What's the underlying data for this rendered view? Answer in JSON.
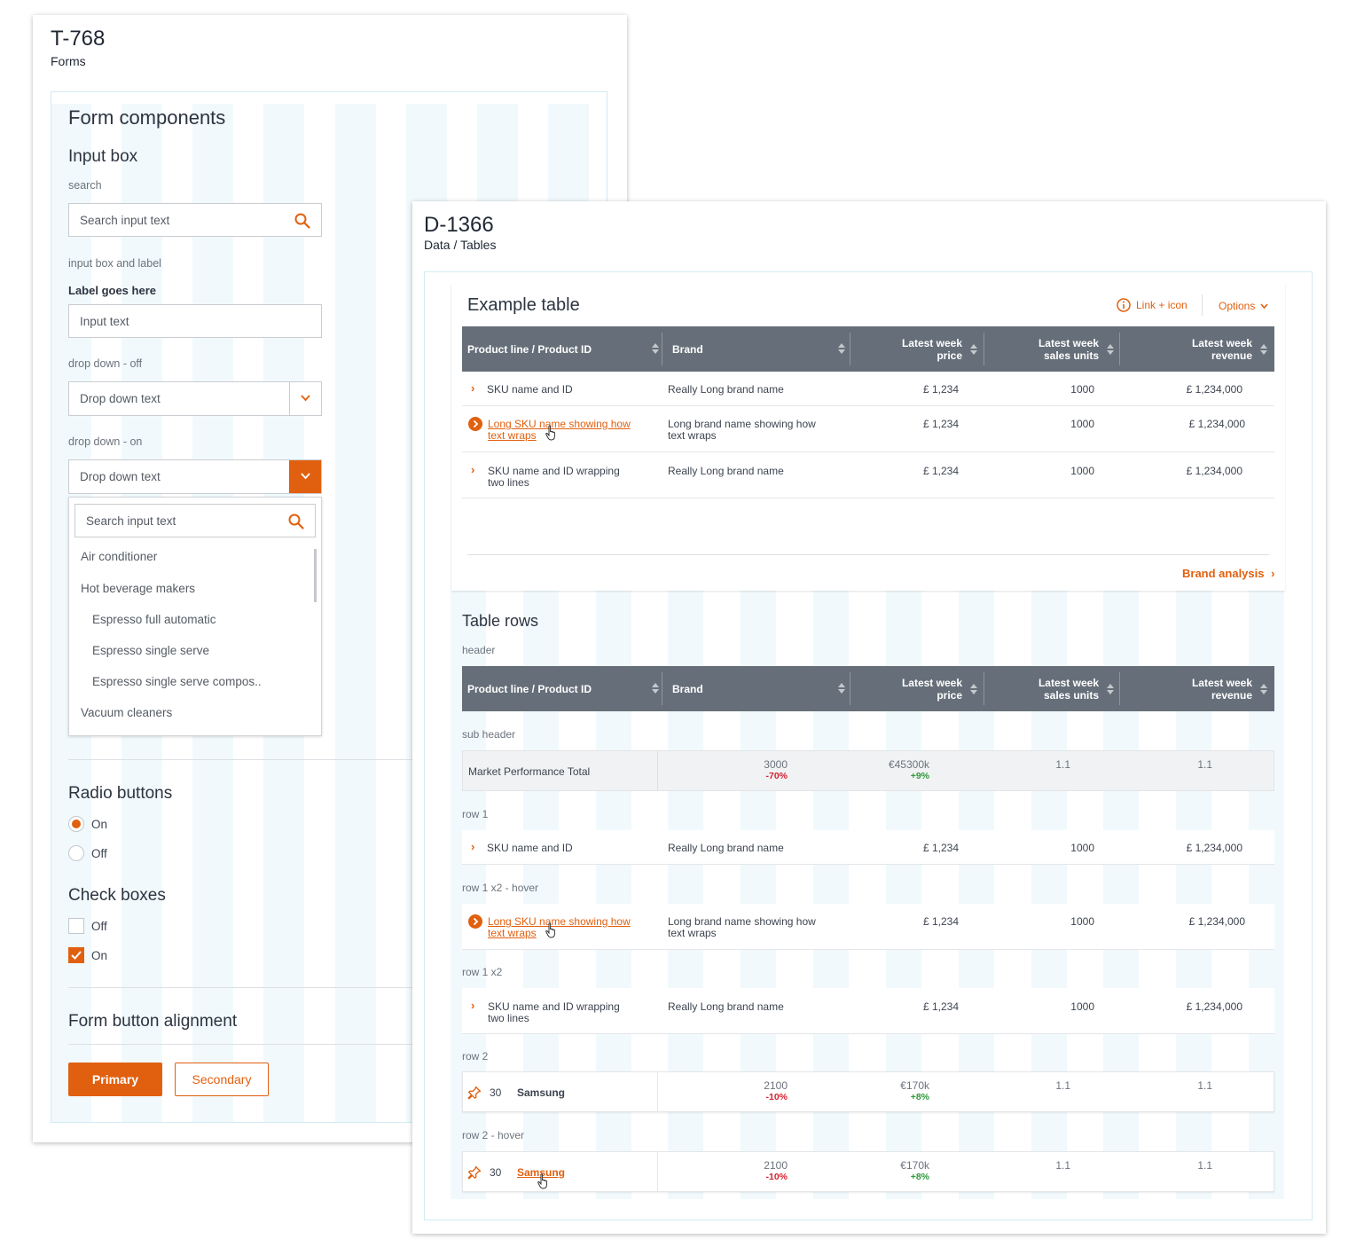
{
  "forms_card": {
    "title": "T-768",
    "subtitle": "Forms",
    "heading": "Form components",
    "input_box": {
      "title": "Input box",
      "search_label": "search",
      "search_placeholder": "Search input text",
      "input_label_caption": "input box and label",
      "field_label": "Label goes here",
      "input_placeholder": "Input text",
      "dropdown_off_caption": "drop down - off",
      "dropdown_off_text": "Drop down text",
      "dropdown_on_caption": "drop down - on",
      "dropdown_on_text": "Drop down text",
      "dropdown_search_placeholder": "Search input text",
      "dropdown_items": [
        "Air conditioner",
        "Hot beverage makers",
        "Espresso full automatic",
        "Espresso single serve",
        "Espresso single serve compos..",
        "Vacuum cleaners"
      ]
    },
    "radio": {
      "title": "Radio buttons",
      "on": "On",
      "off": "Off"
    },
    "checkbox": {
      "title": "Check boxes",
      "off": "Off",
      "on": "On"
    },
    "buttons": {
      "title": "Form button alignment",
      "primary": "Primary",
      "secondary": "Secondary"
    }
  },
  "tables_card": {
    "title": "D-1366",
    "subtitle": "Data / Tables",
    "example": {
      "title": "Example table",
      "link_icon": "Link + icon",
      "options": "Options",
      "footer_link": "Brand analysis",
      "columns": [
        "Product line / Product ID",
        "Brand",
        "Latest week price",
        "Latest week sales units",
        "Latest week revenue"
      ],
      "col_lines": {
        "price": [
          "Latest week",
          "price"
        ],
        "units": [
          "Latest week",
          "sales units"
        ],
        "revenue": [
          "Latest week",
          "revenue"
        ]
      },
      "rows": [
        {
          "sku": [
            "SKU name and ID"
          ],
          "brand": [
            "Really Long brand name"
          ],
          "price": "£ 1,234",
          "units": "1000",
          "revenue": "£ 1,234,000"
        },
        {
          "sku": [
            "Long SKU name showing how",
            "text wraps"
          ],
          "brand": [
            "Long brand name showing how",
            "text wraps"
          ],
          "price": "£ 1,234",
          "units": "1000",
          "revenue": "£ 1,234,000"
        },
        {
          "sku": [
            "SKU name and ID wrapping",
            "two lines"
          ],
          "brand": [
            "Really Long brand name"
          ],
          "price": "£ 1,234",
          "units": "1000",
          "revenue": "£ 1,234,000"
        }
      ]
    },
    "rows_section": {
      "title": "Table rows",
      "header_caption": "header",
      "subheader_caption": "sub header",
      "subheader": {
        "label": "Market Performance Total",
        "v1": "3000",
        "v1_delta": "-70%",
        "v2": "€45300k",
        "v2_delta": "+9%",
        "v3": "1.1",
        "v4": "1.1"
      },
      "row1_caption": "row 1",
      "row1x2_hover_caption": "row 1 x2 - hover",
      "row1x2_caption": "row 1 x2",
      "row2_caption": "row 2",
      "row2_hover_caption": "row 2 - hover",
      "row2": {
        "rank": "30",
        "brand": "Samsung",
        "v1": "2100",
        "v1_delta": "-10%",
        "v2": "€170k",
        "v2_delta": "+8%",
        "v3": "1.1",
        "v4": "1.1"
      }
    }
  },
  "colors": {
    "accent": "#e1600f",
    "header_bg": "#666f79",
    "grid_column": "#f1f9fc",
    "negative": "#d3202f",
    "positive": "#2e9a3a"
  },
  "icons": [
    "search-icon",
    "chevron-down-icon",
    "chevron-right-icon",
    "info-icon",
    "sort-icon",
    "pin-icon",
    "hand-pointer-icon",
    "check-icon"
  ]
}
